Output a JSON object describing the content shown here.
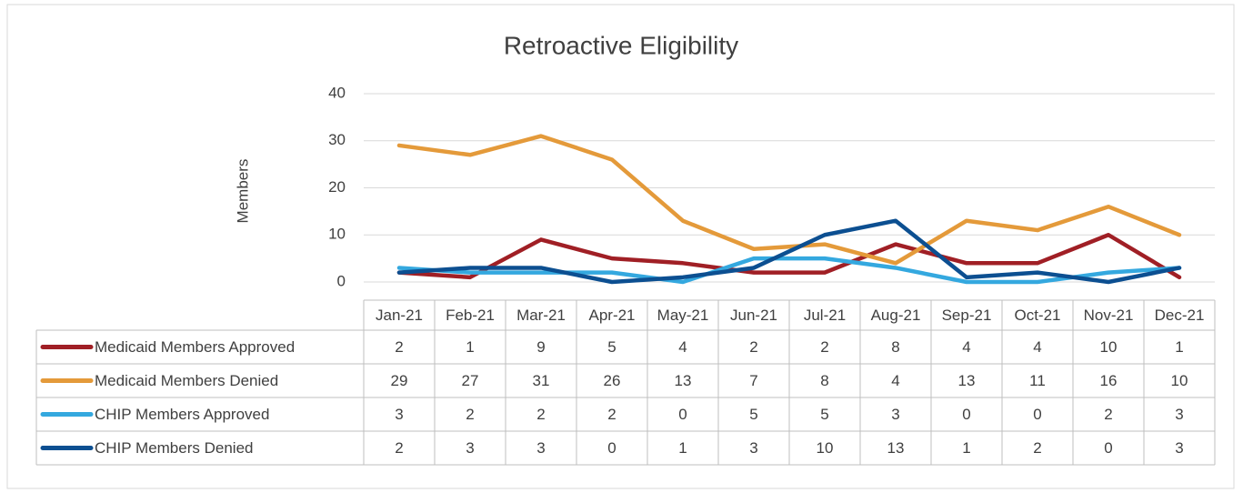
{
  "chart_data": {
    "type": "line",
    "title": "Retroactive Eligibility",
    "y_label": "Members",
    "categories": [
      "Jan-21",
      "Feb-21",
      "Mar-21",
      "Apr-21",
      "May-21",
      "Jun-21",
      "Jul-21",
      "Aug-21",
      "Sep-21",
      "Oct-21",
      "Nov-21",
      "Dec-21"
    ],
    "series": [
      {
        "name": "Medicaid Members Approved",
        "color": "#a01f25",
        "values": [
          2,
          1,
          9,
          5,
          4,
          2,
          2,
          8,
          4,
          4,
          10,
          1
        ]
      },
      {
        "name": "Medicaid Members Denied",
        "color": "#e49a3a",
        "values": [
          29,
          27,
          31,
          26,
          13,
          7,
          8,
          4,
          13,
          11,
          16,
          10
        ]
      },
      {
        "name": "CHIP Members Approved",
        "color": "#34a8df",
        "values": [
          3,
          2,
          2,
          2,
          0,
          5,
          5,
          3,
          0,
          0,
          2,
          3
        ]
      },
      {
        "name": "CHIP Members Denied",
        "color": "#0c4f91",
        "values": [
          2,
          3,
          3,
          0,
          1,
          3,
          10,
          13,
          1,
          2,
          0,
          3
        ]
      }
    ],
    "ylim": [
      0,
      40
    ],
    "yticks": [
      0,
      10,
      20,
      30,
      40
    ],
    "grid": true,
    "data_table": true
  }
}
